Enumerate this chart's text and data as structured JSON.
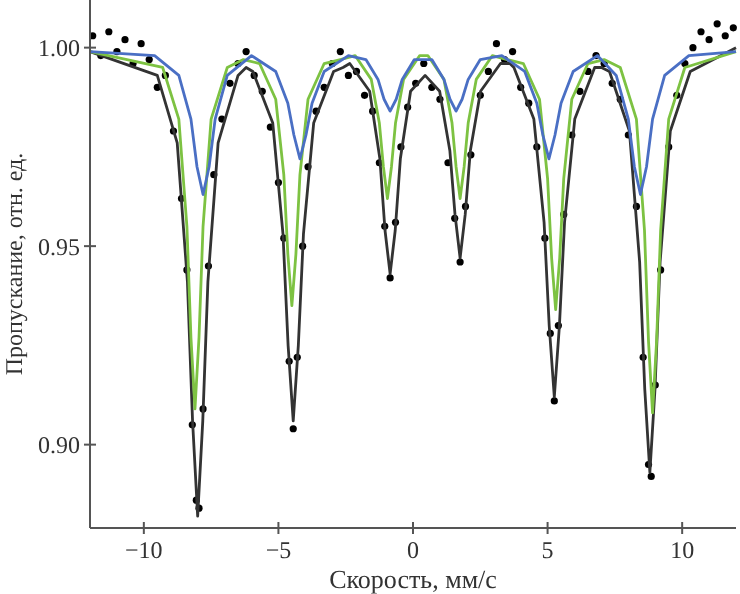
{
  "chart_data": {
    "type": "line",
    "xlabel": "Скорость, мм/с",
    "ylabel": "Пропускание, отн. ед.",
    "xlim": [
      -12,
      12
    ],
    "ylim": [
      0.879,
      1.012
    ],
    "xticks": [
      {
        "value": -10,
        "label": "−10"
      },
      {
        "value": -5,
        "label": "−5"
      },
      0,
      5,
      10
    ],
    "yticks": [
      {
        "value": 0.9,
        "label": "0.90"
      },
      {
        "value": 0.95,
        "label": "0.95"
      },
      {
        "value": 1,
        "label": "1.00"
      }
    ],
    "series": [
      {
        "type": "scatter",
        "color": "#000000",
        "marker": "circle",
        "x": [
          -11.9,
          -11.6,
          -11.3,
          -11.0,
          -10.7,
          -10.4,
          -10.1,
          -9.8,
          -9.5,
          -9.2,
          -8.9,
          -8.6,
          -8.4,
          -8.2,
          -8.05,
          -7.95,
          -7.8,
          -7.6,
          -7.4,
          -7.1,
          -6.8,
          -6.5,
          -6.2,
          -5.9,
          -5.6,
          -5.3,
          -5.0,
          -4.8,
          -4.6,
          -4.45,
          -4.3,
          -4.1,
          -3.9,
          -3.6,
          -3.3,
          -3.0,
          -2.7,
          -2.4,
          -2.1,
          -1.8,
          -1.5,
          -1.25,
          -1.05,
          -0.85,
          -0.65,
          -0.45,
          -0.2,
          0.1,
          0.4,
          0.7,
          1.0,
          1.3,
          1.55,
          1.75,
          1.95,
          2.15,
          2.5,
          2.8,
          3.1,
          3.4,
          3.7,
          4.0,
          4.3,
          4.6,
          4.9,
          5.1,
          5.25,
          5.4,
          5.6,
          5.9,
          6.2,
          6.5,
          6.8,
          7.1,
          7.4,
          7.7,
          8.0,
          8.3,
          8.55,
          8.75,
          8.85,
          9.0,
          9.2,
          9.5,
          9.8,
          10.1,
          10.4,
          10.7,
          11.0,
          11.3,
          11.6,
          11.9
        ],
        "values": [
          1.003,
          0.998,
          1.004,
          0.999,
          1.002,
          0.996,
          1.001,
          0.997,
          0.99,
          0.993,
          0.979,
          0.962,
          0.944,
          0.905,
          0.886,
          0.884,
          0.909,
          0.945,
          0.968,
          0.982,
          0.991,
          0.996,
          0.999,
          0.993,
          0.989,
          0.98,
          0.966,
          0.952,
          0.921,
          0.904,
          0.922,
          0.95,
          0.97,
          0.984,
          0.99,
          0.996,
          0.999,
          0.993,
          0.994,
          0.988,
          0.984,
          0.971,
          0.955,
          0.942,
          0.956,
          0.975,
          0.985,
          0.991,
          0.996,
          0.99,
          0.987,
          0.971,
          0.957,
          0.946,
          0.96,
          0.973,
          0.988,
          0.994,
          1.001,
          0.997,
          0.999,
          0.99,
          0.986,
          0.975,
          0.952,
          0.928,
          0.911,
          0.93,
          0.958,
          0.978,
          0.989,
          0.994,
          0.998,
          0.996,
          0.991,
          0.987,
          0.978,
          0.96,
          0.922,
          0.895,
          0.892,
          0.915,
          0.944,
          0.975,
          0.988,
          0.996,
          1.0,
          1.004,
          1.002,
          1.006,
          1.003,
          1.005
        ]
      },
      {
        "color": "#333333",
        "x": [
          -12,
          -9.5,
          -8.76,
          -8.38,
          -8.19,
          -8.0,
          -7.81,
          -7.62,
          -7.24,
          -6.5,
          -6.2,
          -5.95,
          -5.21,
          -4.83,
          -4.64,
          -4.45,
          -4.26,
          -4.07,
          -3.69,
          -2.95,
          -2.6,
          -2.35,
          -1.61,
          -1.23,
          -1.04,
          -0.85,
          -0.66,
          -0.47,
          -0.09,
          0.45,
          0.99,
          1.37,
          1.56,
          1.75,
          1.94,
          2.13,
          2.51,
          3.25,
          3.6,
          3.75,
          4.49,
          4.87,
          5.06,
          5.25,
          5.44,
          5.63,
          6.01,
          6.75,
          7.0,
          7.3,
          8.04,
          8.42,
          8.61,
          8.8,
          8.99,
          9.18,
          9.56,
          10.3,
          12
        ],
        "values": [
          0.999,
          0.993,
          0.976,
          0.941,
          0.906,
          0.882,
          0.906,
          0.941,
          0.976,
          0.993,
          0.995,
          0.994,
          0.981,
          0.953,
          0.925,
          0.906,
          0.925,
          0.953,
          0.981,
          0.994,
          0.995,
          0.996,
          0.989,
          0.972,
          0.954,
          0.943,
          0.954,
          0.972,
          0.989,
          0.993,
          0.989,
          0.974,
          0.958,
          0.947,
          0.958,
          0.974,
          0.989,
          0.996,
          0.996,
          0.995,
          0.982,
          0.956,
          0.93,
          0.912,
          0.93,
          0.956,
          0.982,
          0.995,
          0.995,
          0.994,
          0.979,
          0.946,
          0.914,
          0.893,
          0.914,
          0.946,
          0.979,
          0.994,
          1.0
        ]
      },
      {
        "color": "#7dc242",
        "x": [
          -12,
          -9.3,
          -8.7,
          -8.4,
          -8.25,
          -8.1,
          -7.95,
          -7.8,
          -7.5,
          -6.9,
          -6.3,
          -5.7,
          -5.1,
          -4.8,
          -4.65,
          -4.5,
          -4.35,
          -4.2,
          -3.9,
          -3.3,
          -2.7,
          -2.15,
          -1.55,
          -1.25,
          -1.1,
          -0.95,
          -0.8,
          -0.65,
          -0.35,
          0.25,
          0.4,
          0.55,
          1.15,
          1.45,
          1.6,
          1.75,
          1.9,
          2.05,
          2.35,
          2.95,
          3.5,
          4.1,
          4.7,
          5.0,
          5.15,
          5.3,
          5.45,
          5.6,
          5.9,
          6.5,
          7.1,
          7.7,
          8.3,
          8.6,
          8.75,
          8.9,
          9.05,
          9.2,
          9.5,
          10.1,
          12
        ],
        "values": [
          0.999,
          0.995,
          0.982,
          0.955,
          0.927,
          0.909,
          0.927,
          0.955,
          0.982,
          0.995,
          0.997,
          0.996,
          0.987,
          0.968,
          0.948,
          0.935,
          0.948,
          0.968,
          0.987,
          0.996,
          0.997,
          0.998,
          0.992,
          0.981,
          0.97,
          0.962,
          0.97,
          0.981,
          0.992,
          0.998,
          0.998,
          0.998,
          0.992,
          0.981,
          0.97,
          0.962,
          0.97,
          0.981,
          0.992,
          0.998,
          0.997,
          0.996,
          0.987,
          0.967,
          0.947,
          0.934,
          0.947,
          0.967,
          0.987,
          0.996,
          0.997,
          0.995,
          0.982,
          0.954,
          0.926,
          0.908,
          0.926,
          0.954,
          0.982,
          0.995,
          0.999
        ]
      },
      {
        "color": "#4a6fc4",
        "x": [
          -12,
          -9.6,
          -8.7,
          -8.25,
          -8.025,
          -7.8,
          -7.575,
          -7.35,
          -6.9,
          -6.0,
          -5.1,
          -4.65,
          -4.425,
          -4.2,
          -3.975,
          -3.75,
          -3.3,
          -2.4,
          -1.75,
          -1.3,
          -1.075,
          -0.85,
          -0.625,
          -0.4,
          0.05,
          0.4,
          0.7,
          1.15,
          1.375,
          1.6,
          1.825,
          2.05,
          2.5,
          3.3,
          4.15,
          4.6,
          4.825,
          5.05,
          5.275,
          5.5,
          5.95,
          6.85,
          7.55,
          8.0,
          8.225,
          8.45,
          8.675,
          8.9,
          9.35,
          10.25,
          12
        ],
        "values": [
          0.999,
          0.998,
          0.993,
          0.982,
          0.97,
          0.963,
          0.97,
          0.982,
          0.993,
          0.998,
          0.994,
          0.986,
          0.978,
          0.972,
          0.978,
          0.986,
          0.994,
          0.998,
          0.997,
          0.992,
          0.987,
          0.984,
          0.987,
          0.992,
          0.997,
          0.997,
          0.997,
          0.992,
          0.987,
          0.984,
          0.987,
          0.992,
          0.997,
          0.998,
          0.994,
          0.986,
          0.978,
          0.972,
          0.978,
          0.986,
          0.994,
          0.998,
          0.993,
          0.982,
          0.97,
          0.963,
          0.97,
          0.982,
          0.993,
          0.998,
          0.999
        ]
      }
    ]
  }
}
